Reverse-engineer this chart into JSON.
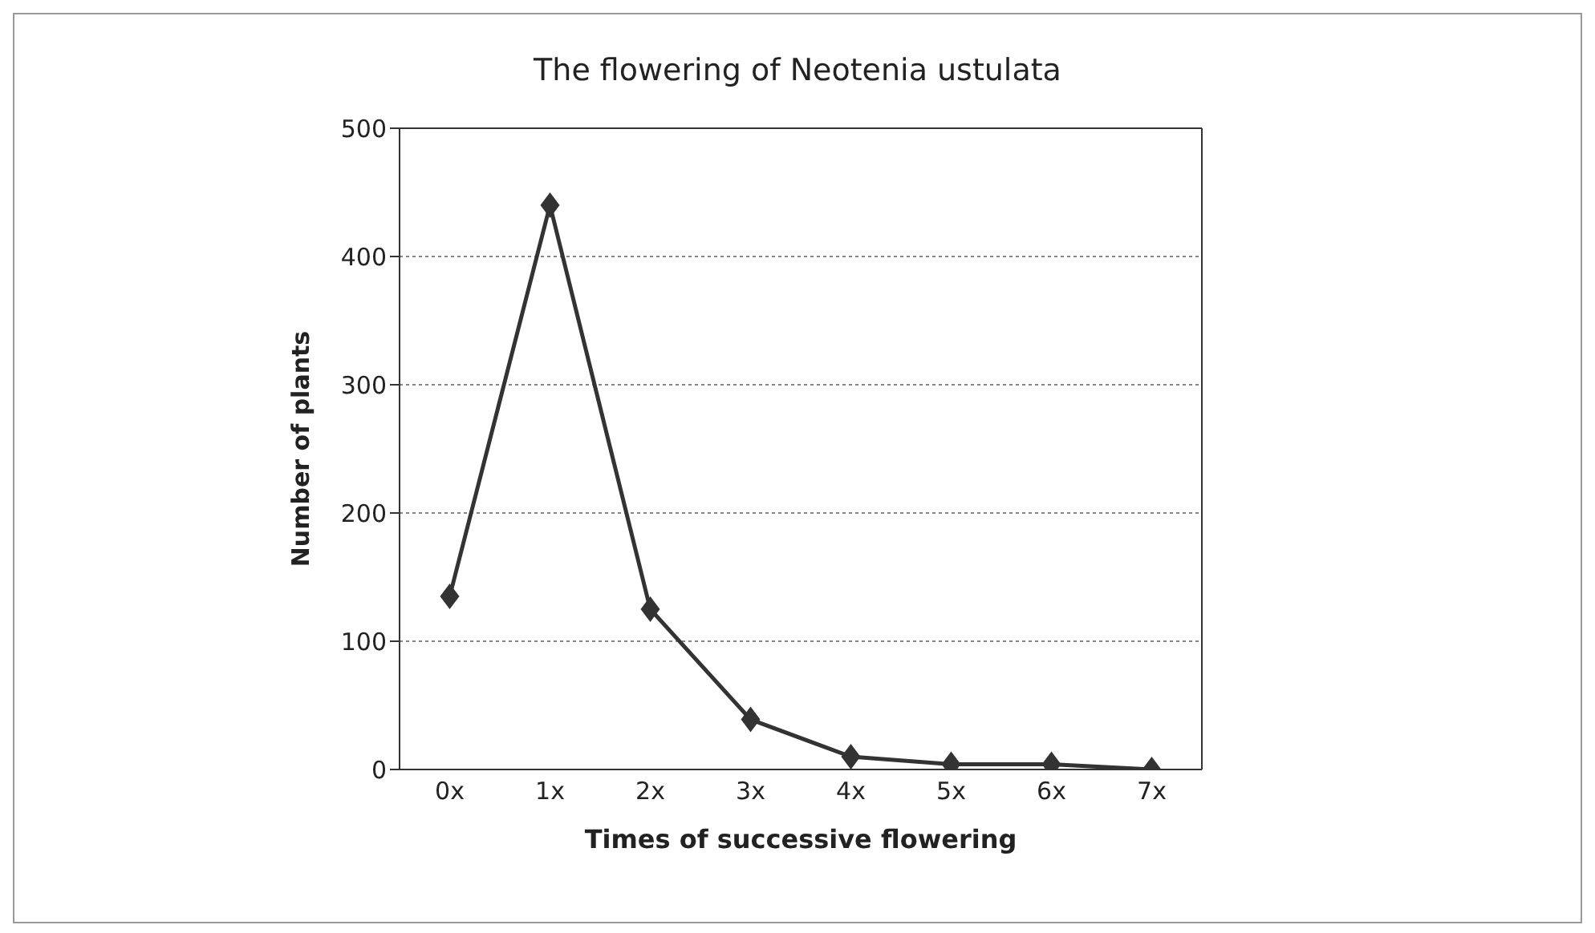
{
  "chart_data": {
    "type": "line",
    "title": "The flowering of Neotenia ustulata",
    "xlabel": "Times of successive flowering",
    "ylabel": "Number of plants",
    "categories": [
      "0x",
      "1x",
      "2x",
      "3x",
      "4x",
      "5x",
      "6x",
      "7x"
    ],
    "series": [
      {
        "color": "#333333",
        "values": [
          135,
          440,
          125,
          39,
          10,
          4,
          4,
          0
        ]
      }
    ],
    "ylim": [
      0,
      500
    ],
    "yticks": [
      0,
      100,
      200,
      300,
      400,
      500
    ],
    "grid": "y",
    "marker": "diamond",
    "line_style": "solid",
    "legend": false
  }
}
